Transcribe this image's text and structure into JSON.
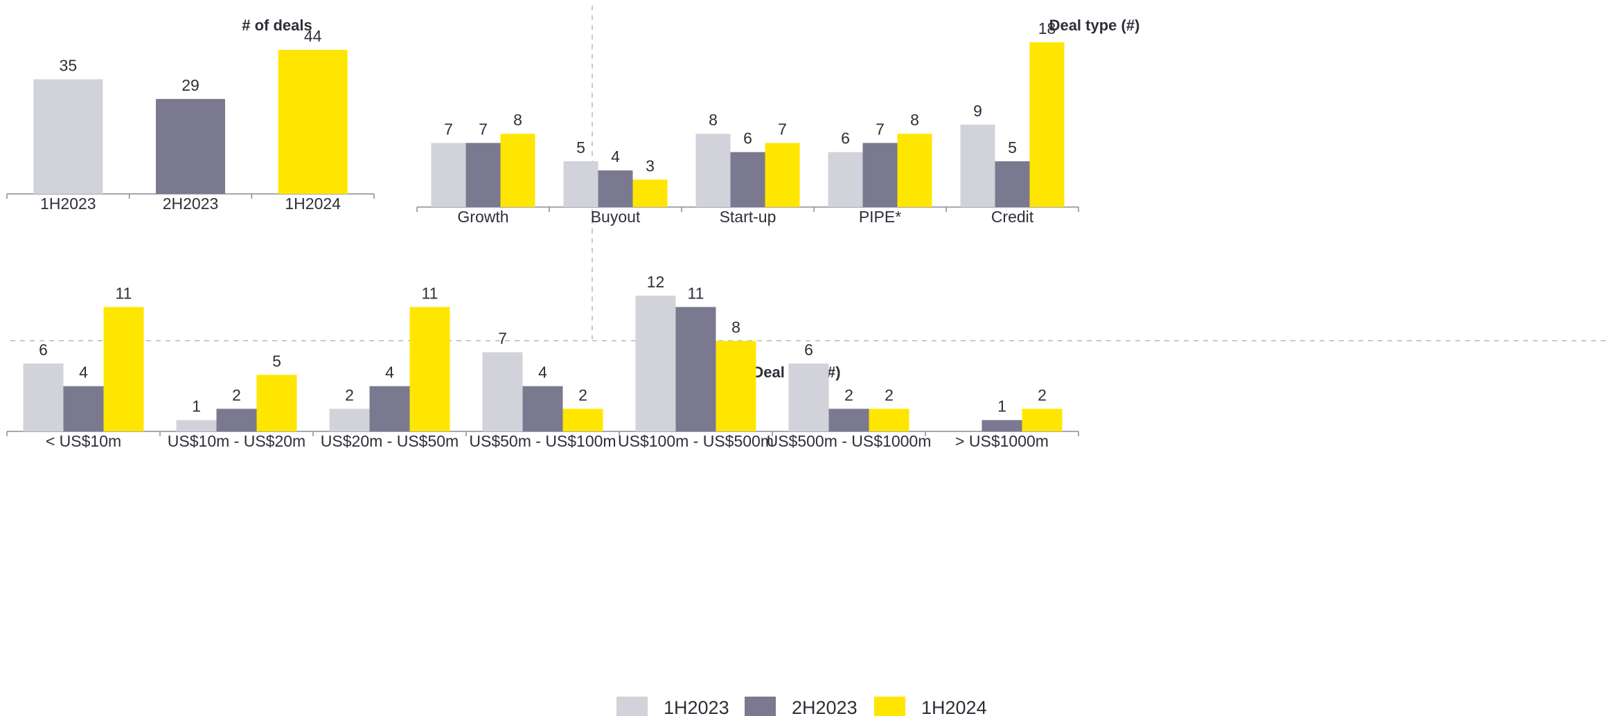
{
  "colors": {
    "1H2023": "#d2d2da",
    "2H2023": "#7a7990",
    "1H2024": "#ffe600"
  },
  "legend": [
    "1H2023",
    "2H2023",
    "1H2024"
  ],
  "chart_data": [
    {
      "type": "bar",
      "title": "# of deals",
      "categories": [
        "1H2023",
        "2H2023",
        "1H2024"
      ],
      "values": [
        35,
        29,
        44
      ],
      "bar_colors": [
        "1H2023",
        "2H2023",
        "1H2024"
      ],
      "xlabel": "",
      "ylabel": "",
      "ylim": [
        0,
        44
      ]
    },
    {
      "type": "bar",
      "title": "Deal type (#)",
      "categories": [
        "Growth",
        "Buyout",
        "Start-up",
        "PIPE*",
        "Credit"
      ],
      "series": [
        {
          "name": "1H2023",
          "values": [
            7,
            5,
            8,
            6,
            9
          ]
        },
        {
          "name": "2H2023",
          "values": [
            7,
            4,
            6,
            7,
            5
          ]
        },
        {
          "name": "1H2024",
          "values": [
            8,
            3,
            7,
            8,
            18
          ]
        }
      ],
      "xlabel": "",
      "ylabel": "",
      "ylim": [
        0,
        18
      ]
    },
    {
      "type": "bar",
      "title": "Deal size (#)",
      "categories": [
        "< US$10m",
        "US$10m - US$20m",
        "US$20m - US$50m",
        "US$50m - US$100m",
        "US$100m - US$500m",
        "US$500m - US$1000m",
        "> US$1000m"
      ],
      "series": [
        {
          "name": "1H2023",
          "values": [
            6,
            1,
            2,
            7,
            12,
            6,
            null
          ]
        },
        {
          "name": "2H2023",
          "values": [
            4,
            2,
            4,
            4,
            11,
            2,
            1
          ]
        },
        {
          "name": "1H2024",
          "values": [
            11,
            5,
            11,
            2,
            8,
            2,
            2
          ]
        }
      ],
      "xlabel": "",
      "ylabel": "",
      "ylim": [
        0,
        12
      ]
    }
  ]
}
